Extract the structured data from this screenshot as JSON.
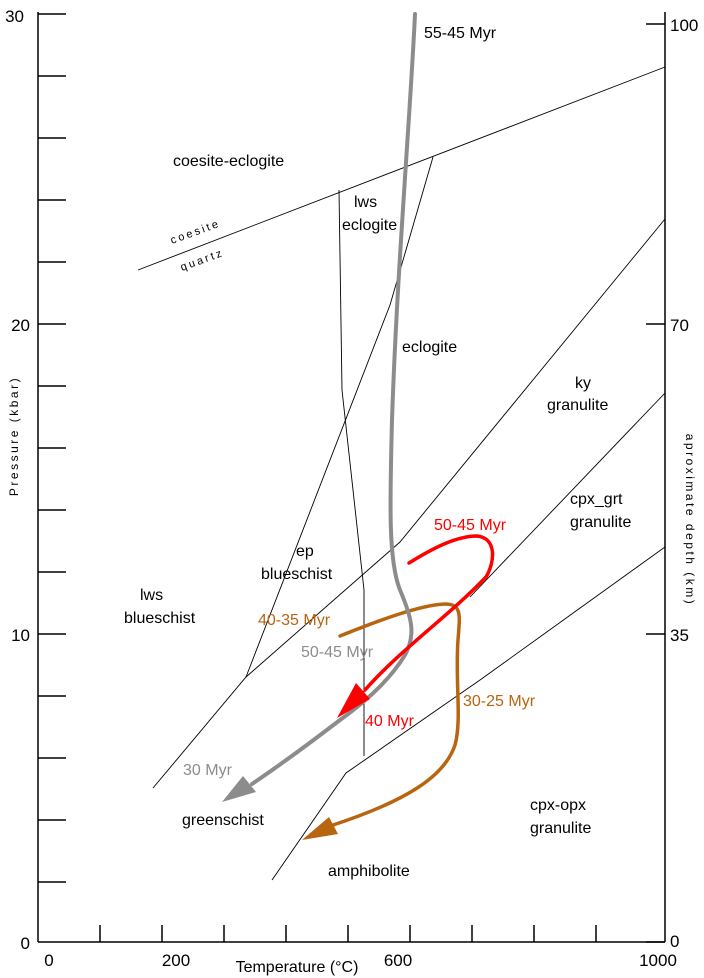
{
  "axes": {
    "x_title": "Temperature (°C)",
    "y_left_title": "Pressure (kbar)",
    "y_right_title": "aproximate depth (km)",
    "x_ticks": [
      "0",
      "200",
      "600",
      "1000"
    ],
    "y_left_ticks": [
      "0",
      "10",
      "20",
      "30"
    ],
    "y_right_ticks": [
      "0",
      "35",
      "70",
      "100"
    ]
  },
  "facies": {
    "coesite_eclogite": "coesite-eclogite",
    "coesite": "coesite",
    "quartz": "quartz",
    "lws_eclogite_1": "lws",
    "lws_eclogite_2": "eclogite",
    "eclogite": "eclogite",
    "ky_granulite_1": "ky",
    "ky_granulite_2": "granulite",
    "cpx_grt_granulite_1": "cpx_grt",
    "cpx_grt_granulite_2": "granulite",
    "ep_blueschist_1": "ep",
    "ep_blueschist_2": "blueschist",
    "lws_blueschist_1": "lws",
    "lws_blueschist_2": "blueschist",
    "greenschist": "greenschist",
    "amphibolite": "amphibolite",
    "cpx_opx_granulite_1": "cpx-opx",
    "cpx_opx_granulite_2": "granulite"
  },
  "paths": {
    "gray_top": "55-45 Myr",
    "gray_mid": "50-45 Myr",
    "gray_end": "30 Myr",
    "red_start": "50-45 Myr",
    "red_end": "40 Myr",
    "orange_start": "40-35 Myr",
    "orange_end": "30-25 Myr"
  },
  "colors": {
    "gray": "#8c8c8c",
    "red": "#ff0000",
    "orange": "#b8650f",
    "gray_label": "#8c8c8c",
    "red_label": "#ff0000",
    "orange_label": "#b8650f"
  }
}
